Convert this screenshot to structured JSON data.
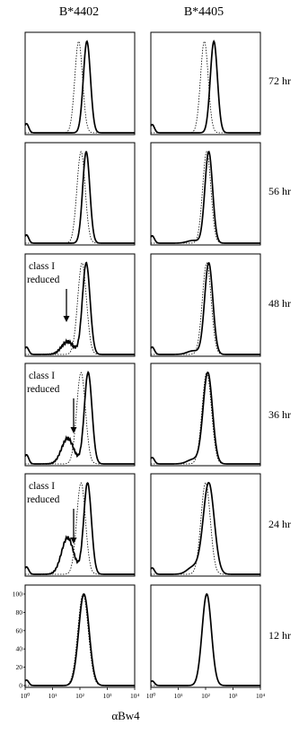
{
  "columns": [
    "B*4402",
    "B*4405"
  ],
  "rows": [
    "72 hr",
    "56 hr",
    "48 hr",
    "36 hr",
    "24 hr",
    "12 hr"
  ],
  "annotation": [
    "class I",
    "reduced"
  ],
  "xlabel": "αBw4",
  "chart_data": {
    "type": "line",
    "xscale": "log",
    "xlim": [
      1,
      10000
    ],
    "ylim": [
      0,
      100
    ],
    "x_ticks": [
      "10⁰",
      "10¹",
      "10²",
      "10³",
      "10⁴"
    ],
    "y_ticks": [
      "0",
      "20",
      "40",
      "60",
      "80",
      "100"
    ],
    "panels": [
      {
        "column": "B*4402",
        "time": "72 hr",
        "annotated": false,
        "series": [
          {
            "style": "dotted",
            "peak_x": 90,
            "sd": 0.14
          },
          {
            "style": "solid",
            "peak_x": 180,
            "sd": 0.13,
            "low_end": 10,
            "left_hump": 0
          }
        ]
      },
      {
        "column": "B*4405",
        "time": "72 hr",
        "annotated": false,
        "series": [
          {
            "style": "dotted",
            "peak_x": 90,
            "sd": 0.14
          },
          {
            "style": "solid",
            "peak_x": 200,
            "sd": 0.13,
            "low_end": 9,
            "left_hump": 0
          }
        ]
      },
      {
        "column": "B*4402",
        "time": "56 hr",
        "annotated": false,
        "series": [
          {
            "style": "dotted",
            "peak_x": 110,
            "sd": 0.15
          },
          {
            "style": "solid",
            "peak_x": 170,
            "sd": 0.13,
            "low_end": 9,
            "left_hump": 0
          }
        ]
      },
      {
        "column": "B*4405",
        "time": "56 hr",
        "annotated": false,
        "series": [
          {
            "style": "dotted",
            "peak_x": 110,
            "sd": 0.15
          },
          {
            "style": "solid",
            "peak_x": 130,
            "sd": 0.14,
            "low_end": 8,
            "left_hump": 3
          }
        ]
      },
      {
        "column": "B*4402",
        "time": "48 hr",
        "annotated": true,
        "series": [
          {
            "style": "dotted",
            "peak_x": 120,
            "sd": 0.16
          },
          {
            "style": "solid",
            "peak_x": 170,
            "sd": 0.14,
            "low_end": 8,
            "left_hump": 14
          }
        ]
      },
      {
        "column": "B*4405",
        "time": "48 hr",
        "annotated": false,
        "series": [
          {
            "style": "dotted",
            "peak_x": 110,
            "sd": 0.16
          },
          {
            "style": "solid",
            "peak_x": 130,
            "sd": 0.15,
            "low_end": 8,
            "left_hump": 4
          }
        ]
      },
      {
        "column": "B*4402",
        "time": "36 hr",
        "annotated": true,
        "series": [
          {
            "style": "dotted",
            "peak_x": 110,
            "sd": 0.16
          },
          {
            "style": "solid",
            "peak_x": 200,
            "sd": 0.14,
            "low_end": 10,
            "left_hump": 28
          }
        ]
      },
      {
        "column": "B*4405",
        "time": "36 hr",
        "annotated": false,
        "series": [
          {
            "style": "dotted",
            "peak_x": 110,
            "sd": 0.17
          },
          {
            "style": "solid",
            "peak_x": 120,
            "sd": 0.17,
            "low_end": 7,
            "left_hump": 5
          }
        ]
      },
      {
        "column": "B*4402",
        "time": "24 hr",
        "annotated": true,
        "series": [
          {
            "style": "dotted",
            "peak_x": 110,
            "sd": 0.16
          },
          {
            "style": "solid",
            "peak_x": 190,
            "sd": 0.14,
            "low_end": 8,
            "left_hump": 40
          }
        ]
      },
      {
        "column": "B*4405",
        "time": "24 hr",
        "annotated": false,
        "series": [
          {
            "style": "dotted",
            "peak_x": 100,
            "sd": 0.17
          },
          {
            "style": "solid",
            "peak_x": 130,
            "sd": 0.2,
            "low_end": 7,
            "left_hump": 8
          }
        ]
      },
      {
        "column": "B*4402",
        "time": "12 hr",
        "annotated": false,
        "series": [
          {
            "style": "dotted",
            "peak_x": 130,
            "sd": 0.19
          },
          {
            "style": "solid",
            "peak_x": 140,
            "sd": 0.19,
            "low_end": 6,
            "left_hump": 0
          }
        ]
      },
      {
        "column": "B*4405",
        "time": "12 hr",
        "annotated": false,
        "series": [
          {
            "style": "dotted",
            "peak_x": 110,
            "sd": 0.17
          },
          {
            "style": "solid",
            "peak_x": 110,
            "sd": 0.17,
            "low_end": 5,
            "left_hump": 0
          }
        ]
      }
    ]
  }
}
